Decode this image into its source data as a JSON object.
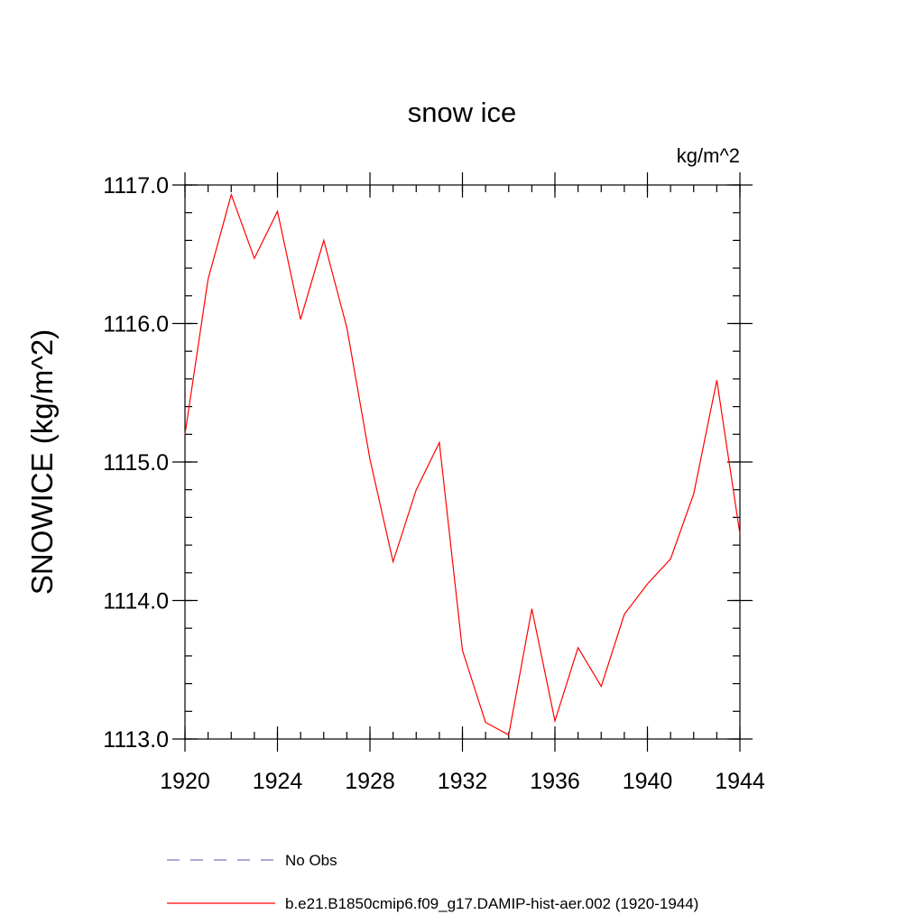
{
  "chart_data": {
    "type": "line",
    "title": "snow ice",
    "units": "kg/m^2",
    "ylabel": "SNOWICE  (kg/m^2)",
    "xlabel": "",
    "xlim": [
      1920,
      1944
    ],
    "ylim": [
      1113.0,
      1117.0
    ],
    "xticks": [
      1920,
      1924,
      1928,
      1932,
      1936,
      1940,
      1944
    ],
    "yticks": [
      "1113.0",
      "1114.0",
      "1115.0",
      "1116.0",
      "1117.0"
    ],
    "x_minor_step": 1,
    "y_minor_step": 0.2,
    "grid": false,
    "legend_position": "bottom",
    "series": [
      {
        "name": "No Obs",
        "color": "#7777bb",
        "dash": "dashed",
        "x": [],
        "y": []
      },
      {
        "name": "b.e21.B1850cmip6.f09_g17.DAMIP-hist-aer.002 (1920-1944)",
        "color": "#ff0000",
        "dash": "solid",
        "x": [
          1920,
          1921,
          1922,
          1923,
          1924,
          1925,
          1926,
          1927,
          1928,
          1929,
          1930,
          1931,
          1932,
          1933,
          1934,
          1935,
          1936,
          1937,
          1938,
          1939,
          1940,
          1941,
          1942,
          1943,
          1944
        ],
        "y": [
          1115.2,
          1116.32,
          1116.93,
          1116.47,
          1116.81,
          1116.03,
          1116.6,
          1115.97,
          1115.02,
          1114.28,
          1114.8,
          1115.14,
          1113.64,
          1113.12,
          1113.03,
          1113.94,
          1113.13,
          1113.66,
          1113.38,
          1113.9,
          1114.12,
          1114.3,
          1114.77,
          1115.59,
          1114.48
        ]
      }
    ]
  }
}
